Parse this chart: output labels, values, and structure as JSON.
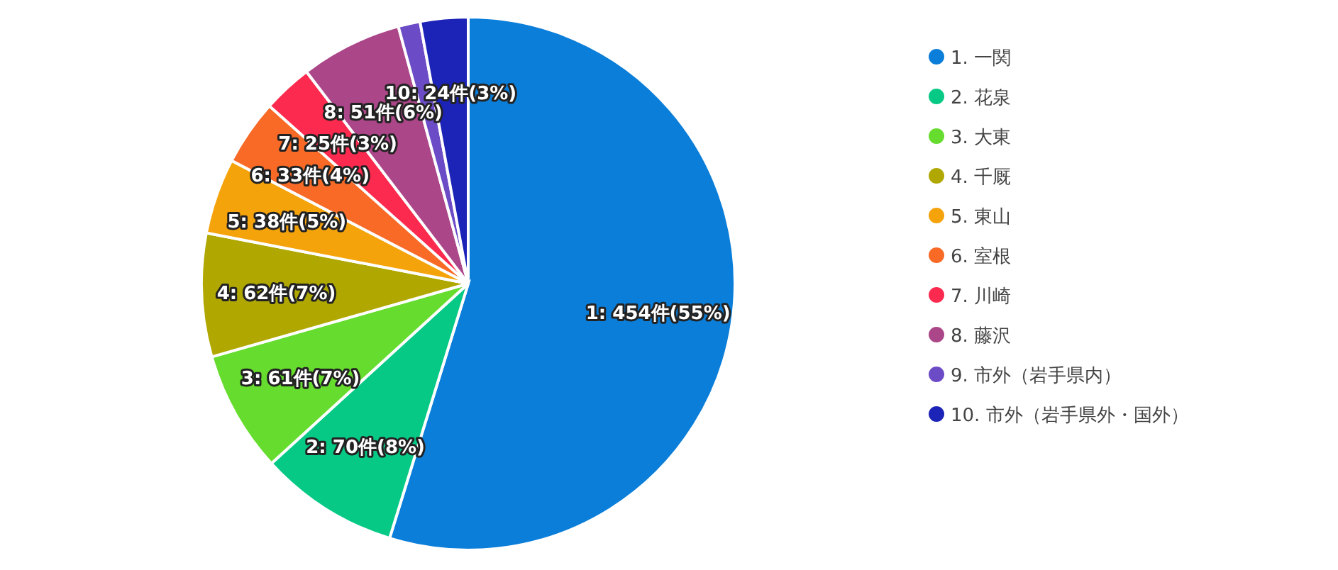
{
  "chart_data": {
    "type": "pie",
    "categories": [
      "1. 一関",
      "2. 花泉",
      "3. 大東",
      "4. 千厩",
      "5. 東山",
      "6. 室根",
      "7. 川崎",
      "8. 藤沢",
      "9. 市外（岩手県内）",
      "10. 市外（岩手県外・国外）"
    ],
    "values": [
      454,
      70,
      61,
      62,
      38,
      33,
      25,
      51,
      11,
      24
    ],
    "value_labels": [
      "1: 454件(55%)",
      "2: 70件(8%)",
      "3: 61件(7%)",
      "4: 62件(7%)",
      "5: 38件(5%)",
      "6: 33件(4%)",
      "7: 25件(3%)",
      "8: 51件(6%)",
      null,
      "10: 24件(3%)"
    ],
    "colors": [
      "#0b7ed9",
      "#06c985",
      "#66dc2e",
      "#b0a800",
      "#f5a30b",
      "#f86a26",
      "#fb2a4e",
      "#ab4689",
      "#6b4bc6",
      "#1c23b7"
    ],
    "legend": "right"
  }
}
